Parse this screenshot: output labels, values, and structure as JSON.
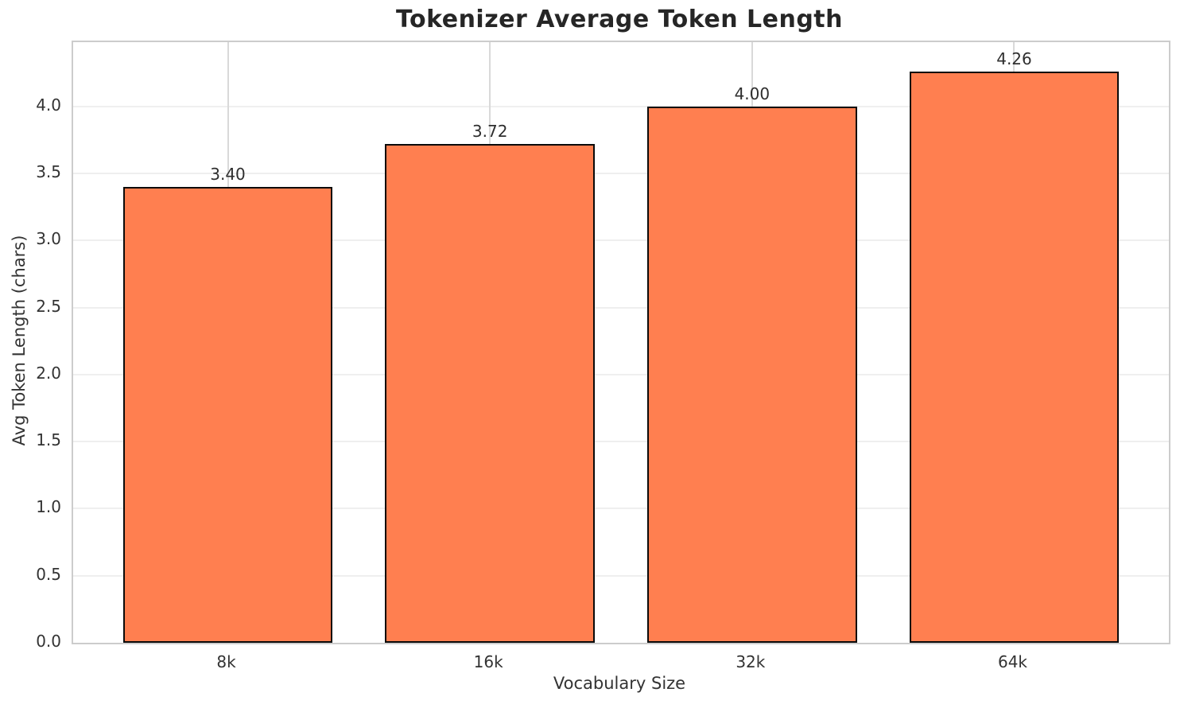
{
  "chart_data": {
    "type": "bar",
    "title": "Tokenizer Average Token Length",
    "xlabel": "Vocabulary Size",
    "ylabel": "Avg Token Length (chars)",
    "categories": [
      "8k",
      "16k",
      "32k",
      "64k"
    ],
    "values": [
      3.4,
      3.72,
      4.0,
      4.26
    ],
    "bar_labels": [
      "3.40",
      "3.72",
      "4.00",
      "4.26"
    ],
    "ytick_labels": [
      "0.0",
      "0.5",
      "1.0",
      "1.5",
      "2.0",
      "2.5",
      "3.0",
      "3.5",
      "4.0"
    ],
    "yticks": [
      0.0,
      0.5,
      1.0,
      1.5,
      2.0,
      2.5,
      3.0,
      3.5,
      4.0
    ],
    "ylim": [
      0,
      4.48
    ],
    "xlim": [
      -0.59,
      3.59
    ],
    "bar_width": 0.8,
    "grid": true,
    "legend_position": "none",
    "colors": {
      "bar_fill": "#FF7F50",
      "bar_edge": "#0a0a0a",
      "grid_horizontal": "#efefef",
      "grid_vertical": "#d9d9d9",
      "spine": "#cccccc",
      "title_text": "#262626",
      "tick_text": "#333333",
      "value_label_text": "#2e2e2e",
      "background": "#ffffff"
    }
  }
}
